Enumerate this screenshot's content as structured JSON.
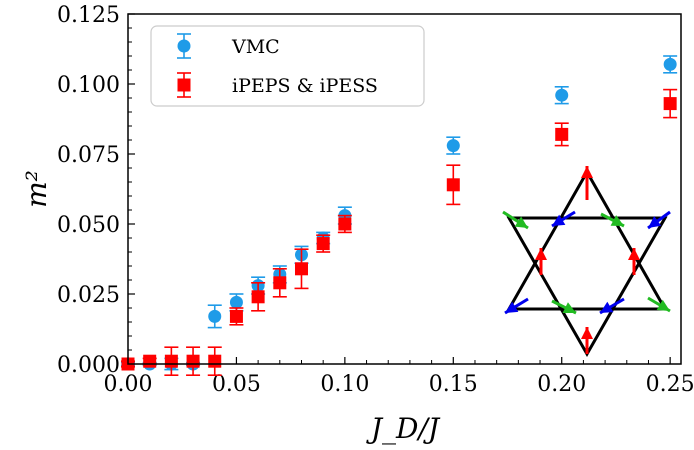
{
  "chart_data": {
    "type": "scatter",
    "xlabel": "J_D/J",
    "ylabel": "m²",
    "xlim": [
      0.0,
      0.255
    ],
    "ylim": [
      0.0,
      0.125
    ],
    "xticks": [
      "0.00",
      "0.05",
      "0.10",
      "0.15",
      "0.20",
      "0.25"
    ],
    "yticks": [
      "0.000",
      "0.025",
      "0.050",
      "0.075",
      "0.100",
      "0.125"
    ],
    "legend_position": "top-left",
    "series": [
      {
        "name": "VMC",
        "marker": "circle",
        "color": "#1f9be8",
        "x": [
          0.0,
          0.01,
          0.02,
          0.03,
          0.04,
          0.05,
          0.06,
          0.07,
          0.08,
          0.09,
          0.1,
          0.15,
          0.2,
          0.25
        ],
        "y": [
          0.0,
          0.0,
          0.0,
          0.0,
          0.017,
          0.022,
          0.028,
          0.032,
          0.039,
          0.045,
          0.053,
          0.078,
          0.096,
          0.107
        ],
        "err": [
          0.0005,
          0.0005,
          0.002,
          0.0005,
          0.004,
          0.003,
          0.003,
          0.003,
          0.003,
          0.002,
          0.003,
          0.003,
          0.003,
          0.003
        ]
      },
      {
        "name": "iPEPS & iPESS",
        "marker": "square",
        "color": "#ff0000",
        "x": [
          0.0,
          0.01,
          0.02,
          0.03,
          0.04,
          0.05,
          0.06,
          0.07,
          0.08,
          0.09,
          0.1,
          0.15,
          0.2,
          0.25
        ],
        "y": [
          0.0,
          0.001,
          0.001,
          0.001,
          0.001,
          0.017,
          0.024,
          0.029,
          0.034,
          0.043,
          0.05,
          0.064,
          0.082,
          0.093
        ],
        "err": [
          0.001,
          0.001,
          0.005,
          0.005,
          0.005,
          0.003,
          0.005,
          0.005,
          0.007,
          0.003,
          0.003,
          0.007,
          0.004,
          0.005
        ]
      }
    ],
    "inset": {
      "lattice_color": "#000000",
      "spin_colors": [
        "#ff0000",
        "#22bb22",
        "#0000ee"
      ]
    }
  }
}
